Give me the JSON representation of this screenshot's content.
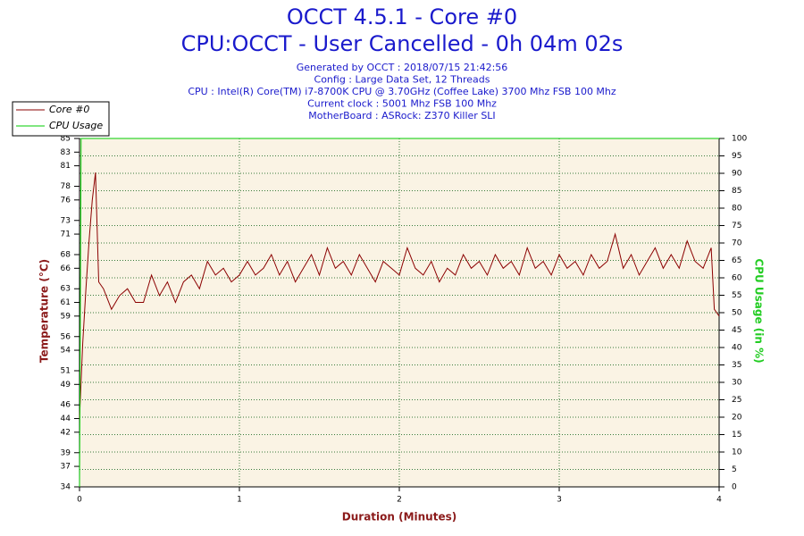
{
  "chart_data": {
    "type": "line",
    "title": "OCCT 4.5.1 - Core #0",
    "subtitle": "CPU:OCCT - User Cancelled - 0h 04m 02s",
    "info_lines": [
      "Generated by OCCT : 2018/07/15 21:42:56",
      "Config : Large Data Set, 12 Threads",
      "CPU : Intel(R) Core(TM) i7-8700K CPU @ 3.70GHz (Coffee Lake) 3700 Mhz FSB 100 Mhz",
      "Current clock : 5001 Mhz FSB 100 Mhz",
      "MotherBoard : ASRock: Z370 Killer SLI"
    ],
    "x_label": "Duration (Minutes)",
    "y_label": "Temperature (°C)",
    "y2_label": "CPU Usage (in %)",
    "xlim": [
      0,
      4
    ],
    "xticks": [
      0,
      1,
      2,
      3,
      4
    ],
    "ylim": [
      34,
      85
    ],
    "yticks": [
      34,
      37,
      39,
      42,
      44,
      46,
      49,
      51,
      54,
      56,
      59,
      61,
      63,
      66,
      68,
      71,
      73,
      76,
      78,
      81,
      83,
      85
    ],
    "y2lim": [
      0,
      100
    ],
    "y2ticks": [
      0,
      5,
      10,
      15,
      20,
      25,
      30,
      35,
      40,
      45,
      50,
      55,
      60,
      65,
      70,
      75,
      80,
      85,
      90,
      95,
      100
    ],
    "grid": true,
    "series": [
      {
        "name": "Core #0",
        "color": "#8b0000",
        "x": [
          0,
          0.02,
          0.04,
          0.06,
          0.08,
          0.1,
          0.12,
          0.15,
          0.2,
          0.25,
          0.3,
          0.35,
          0.4,
          0.45,
          0.5,
          0.55,
          0.6,
          0.65,
          0.7,
          0.75,
          0.8,
          0.85,
          0.9,
          0.95,
          1.0,
          1.05,
          1.1,
          1.15,
          1.2,
          1.25,
          1.3,
          1.35,
          1.4,
          1.45,
          1.5,
          1.55,
          1.6,
          1.65,
          1.7,
          1.75,
          1.8,
          1.85,
          1.9,
          1.95,
          2.0,
          2.05,
          2.1,
          2.15,
          2.2,
          2.25,
          2.3,
          2.35,
          2.4,
          2.45,
          2.5,
          2.55,
          2.6,
          2.65,
          2.7,
          2.75,
          2.8,
          2.85,
          2.9,
          2.95,
          3.0,
          3.05,
          3.1,
          3.15,
          3.2,
          3.25,
          3.3,
          3.35,
          3.4,
          3.45,
          3.5,
          3.55,
          3.6,
          3.65,
          3.7,
          3.75,
          3.8,
          3.85,
          3.9,
          3.95,
          3.97,
          4.0
        ],
        "values": [
          44,
          55,
          63,
          70,
          76,
          80,
          64,
          63,
          60,
          62,
          63,
          61,
          61,
          65,
          62,
          64,
          61,
          64,
          65,
          63,
          67,
          65,
          66,
          64,
          65,
          67,
          65,
          66,
          68,
          65,
          67,
          64,
          66,
          68,
          65,
          69,
          66,
          67,
          65,
          68,
          66,
          64,
          67,
          66,
          65,
          69,
          66,
          65,
          67,
          64,
          66,
          65,
          68,
          66,
          67,
          65,
          68,
          66,
          67,
          65,
          69,
          66,
          67,
          65,
          68,
          66,
          67,
          65,
          68,
          66,
          67,
          71,
          66,
          68,
          65,
          67,
          69,
          66,
          68,
          66,
          70,
          67,
          66,
          69,
          60,
          59
        ]
      },
      {
        "name": "CPU Usage",
        "color": "#00cc00",
        "axis": "y2",
        "x": [
          0,
          0.01,
          4
        ],
        "values": [
          0,
          100,
          100
        ]
      }
    ]
  }
}
